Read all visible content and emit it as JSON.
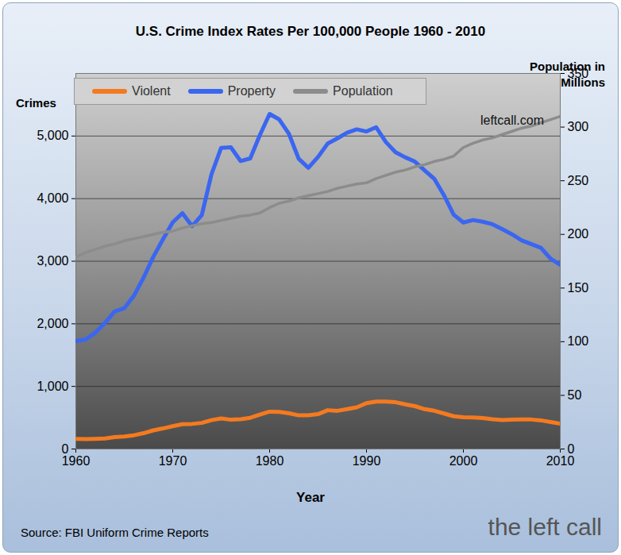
{
  "chart_data": {
    "type": "line",
    "title": "U.S. Crime Index Rates Per 100,000 People 1960 - 2010",
    "x_label": "Year",
    "y_label": "Crimes",
    "y2_label": "Population in Millions",
    "annotations": [
      "leftcall.com",
      "the left call",
      "Source: FBI Uniform Crime Reports"
    ],
    "legend": "top-left",
    "grid": true,
    "xlim": [
      1960,
      2010
    ],
    "xticks": [
      1960,
      1970,
      1980,
      1990,
      2000,
      2010
    ],
    "ylim": [
      0,
      6000
    ],
    "yticks": [
      0,
      {
        "value": 1000,
        "label": "1,000"
      },
      {
        "value": 2000,
        "label": "2,000"
      },
      {
        "value": 3000,
        "label": "3,000"
      },
      {
        "value": 4000,
        "label": "4,000"
      },
      {
        "value": 5000,
        "label": "5,000"
      }
    ],
    "y2lim": [
      0,
      350
    ],
    "y2ticks": [
      0,
      50,
      100,
      150,
      200,
      250,
      300,
      350
    ],
    "x": [
      1960,
      1961,
      1962,
      1963,
      1964,
      1965,
      1966,
      1967,
      1968,
      1969,
      1970,
      1971,
      1972,
      1973,
      1974,
      1975,
      1976,
      1977,
      1978,
      1979,
      1980,
      1981,
      1982,
      1983,
      1984,
      1985,
      1986,
      1987,
      1988,
      1989,
      1990,
      1991,
      1992,
      1993,
      1994,
      1995,
      1996,
      1997,
      1998,
      1999,
      2000,
      2001,
      2002,
      2003,
      2004,
      2005,
      2006,
      2007,
      2008,
      2009,
      2010
    ],
    "series": [
      {
        "name": "Violent",
        "color": "#f47a20",
        "values": [
          161,
          158,
          162,
          168,
          190,
          200,
          220,
          253,
          298,
          329,
          364,
          396,
          401,
          417,
          461,
          488,
          468,
          476,
          498,
          549,
          597,
          594,
          571,
          538,
          539,
          557,
          620,
          610,
          638,
          666,
          732,
          758,
          758,
          747,
          714,
          685,
          637,
          611,
          568,
          523,
          507,
          505,
          494,
          476,
          463,
          469,
          474,
          471,
          458,
          432,
          404
        ]
      },
      {
        "name": "Property",
        "color": "#3a66f0",
        "values": [
          1726,
          1747,
          1857,
          2012,
          2197,
          2249,
          2450,
          2740,
          3071,
          3351,
          3621,
          3768,
          3560,
          3737,
          4389,
          4811,
          4820,
          4601,
          4643,
          5017,
          5353,
          5264,
          5033,
          4638,
          4492,
          4666,
          4881,
          4963,
          5054,
          5107,
          5073,
          5140,
          4904,
          4740,
          4660,
          4591,
          4451,
          4316,
          4053,
          3744,
          3618,
          3658,
          3631,
          3591,
          3514,
          3432,
          3335,
          3274,
          3214,
          3041,
          2942
        ]
      },
      {
        "name": "Population",
        "color": "#8c8c8c",
        "axis": "y2",
        "values": [
          179,
          183,
          186,
          189,
          191,
          194,
          196,
          198,
          200,
          202,
          203,
          206,
          208,
          210,
          211,
          213,
          215,
          217,
          218,
          220,
          225,
          229,
          231,
          234,
          236,
          238,
          240,
          243,
          245,
          247,
          248,
          252,
          255,
          258,
          260,
          263,
          265,
          268,
          270,
          273,
          281,
          285,
          288,
          290,
          293,
          296,
          299,
          301,
          304,
          307,
          310
        ]
      }
    ]
  }
}
